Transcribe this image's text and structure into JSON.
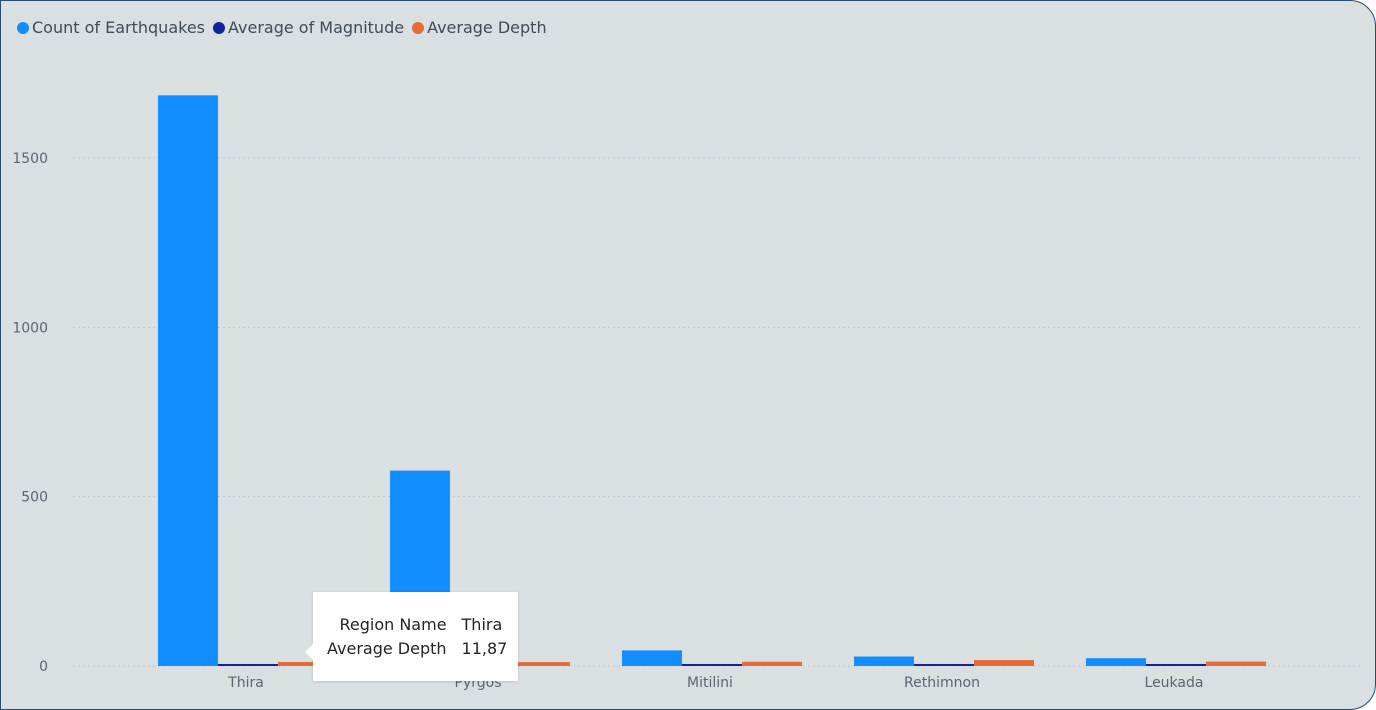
{
  "legend": [
    {
      "label": "Count of Earthquakes",
      "color": "#118dff"
    },
    {
      "label": "Average of Magnitude",
      "color": "#12239e"
    },
    {
      "label": "Average Depth",
      "color": "#e66c37"
    }
  ],
  "tooltip": {
    "rows": [
      {
        "key": "Region Name",
        "value": "Thira"
      },
      {
        "key": "Average Depth",
        "value": "11,87"
      }
    ]
  },
  "chart_data": {
    "type": "bar",
    "categories": [
      "Thira",
      "Pyrgos",
      "Mitilini",
      "Rethimnon",
      "Leukada"
    ],
    "series": [
      {
        "name": "Count of Earthquakes",
        "color": "#118dff",
        "values": [
          1685,
          577,
          46,
          28,
          23
        ]
      },
      {
        "name": "Average of Magnitude",
        "color": "#12239e",
        "values": [
          2.3,
          2.4,
          2.6,
          2.5,
          2.5
        ]
      },
      {
        "name": "Average Depth",
        "color": "#e66c37",
        "values": [
          11.87,
          11.5,
          12.5,
          17.5,
          13.0
        ]
      }
    ],
    "yticks": [
      0,
      500,
      1000,
      1500
    ],
    "ylim": [
      0,
      1750
    ],
    "grid": true,
    "legend_position": "top-left",
    "xlabel": "",
    "ylabel": ""
  }
}
